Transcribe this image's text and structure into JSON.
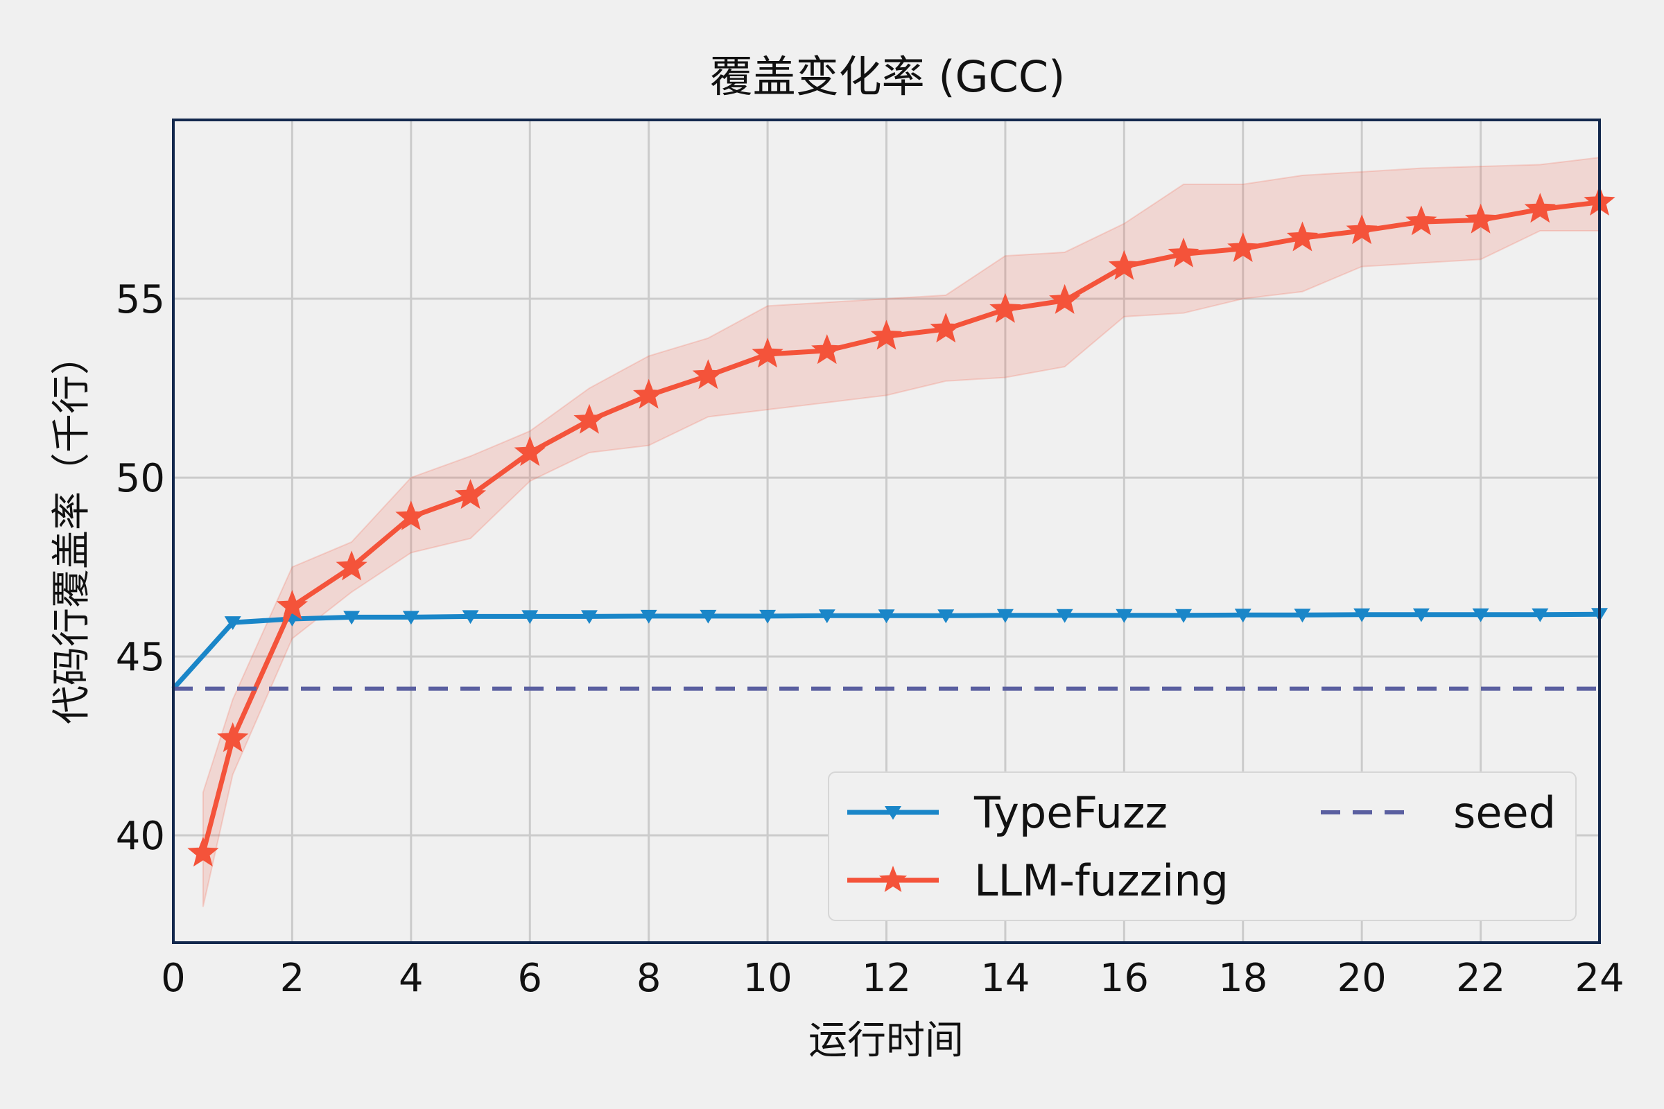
{
  "chart_data": {
    "type": "line",
    "title": "覆盖变化率 (GCC)",
    "xlabel": "运行时间",
    "ylabel": "代码行覆盖率（千行）",
    "xlim": [
      0,
      24
    ],
    "ylim": [
      37,
      60
    ],
    "xticks": [
      0,
      2,
      4,
      6,
      8,
      10,
      12,
      14,
      16,
      18,
      20,
      22,
      24
    ],
    "yticks": [
      40,
      45,
      50,
      55
    ],
    "grid": true,
    "legend_position": "lower-right",
    "series": [
      {
        "name": "TypeFuzz",
        "color": "#1a86c8",
        "marker": "triangle-down",
        "x": [
          0,
          1,
          2,
          3,
          4,
          5,
          6,
          7,
          8,
          9,
          10,
          11,
          12,
          13,
          14,
          15,
          16,
          17,
          18,
          19,
          20,
          21,
          22,
          23,
          24
        ],
        "y": [
          44.1,
          45.95,
          46.05,
          46.1,
          46.1,
          46.12,
          46.12,
          46.12,
          46.13,
          46.13,
          46.13,
          46.14,
          46.14,
          46.14,
          46.15,
          46.15,
          46.15,
          46.15,
          46.16,
          46.16,
          46.17,
          46.17,
          46.17,
          46.17,
          46.18
        ]
      },
      {
        "name": "LLM-fuzzing",
        "color": "#f4533a",
        "marker": "star",
        "x": [
          0.5,
          1,
          2,
          3,
          4,
          5,
          6,
          7,
          8,
          9,
          10,
          11,
          12,
          13,
          14,
          15,
          16,
          17,
          18,
          19,
          20,
          21,
          22,
          23,
          24
        ],
        "y": [
          39.5,
          42.7,
          46.4,
          47.5,
          48.9,
          49.5,
          50.7,
          51.6,
          52.3,
          52.85,
          53.45,
          53.55,
          53.95,
          54.15,
          54.7,
          54.95,
          55.9,
          56.25,
          56.4,
          56.7,
          56.9,
          57.15,
          57.2,
          57.5,
          57.7
        ],
        "band_lower": [
          38.0,
          41.7,
          45.5,
          46.8,
          47.9,
          48.3,
          49.9,
          50.7,
          50.9,
          51.7,
          51.9,
          52.1,
          52.3,
          52.7,
          52.8,
          53.1,
          54.5,
          54.6,
          55.0,
          55.2,
          55.9,
          56.0,
          56.1,
          56.9,
          56.9
        ],
        "band_upper": [
          41.2,
          43.8,
          47.5,
          48.2,
          50.0,
          50.6,
          51.3,
          52.5,
          53.4,
          53.9,
          54.8,
          54.9,
          55.0,
          55.1,
          56.2,
          56.3,
          57.1,
          58.2,
          58.2,
          58.45,
          58.55,
          58.65,
          58.7,
          58.75,
          58.95
        ]
      },
      {
        "name": "seed",
        "color": "#5a5fa0",
        "style": "dashed",
        "x": [
          0,
          24
        ],
        "y": [
          44.1,
          44.1
        ]
      }
    ]
  }
}
